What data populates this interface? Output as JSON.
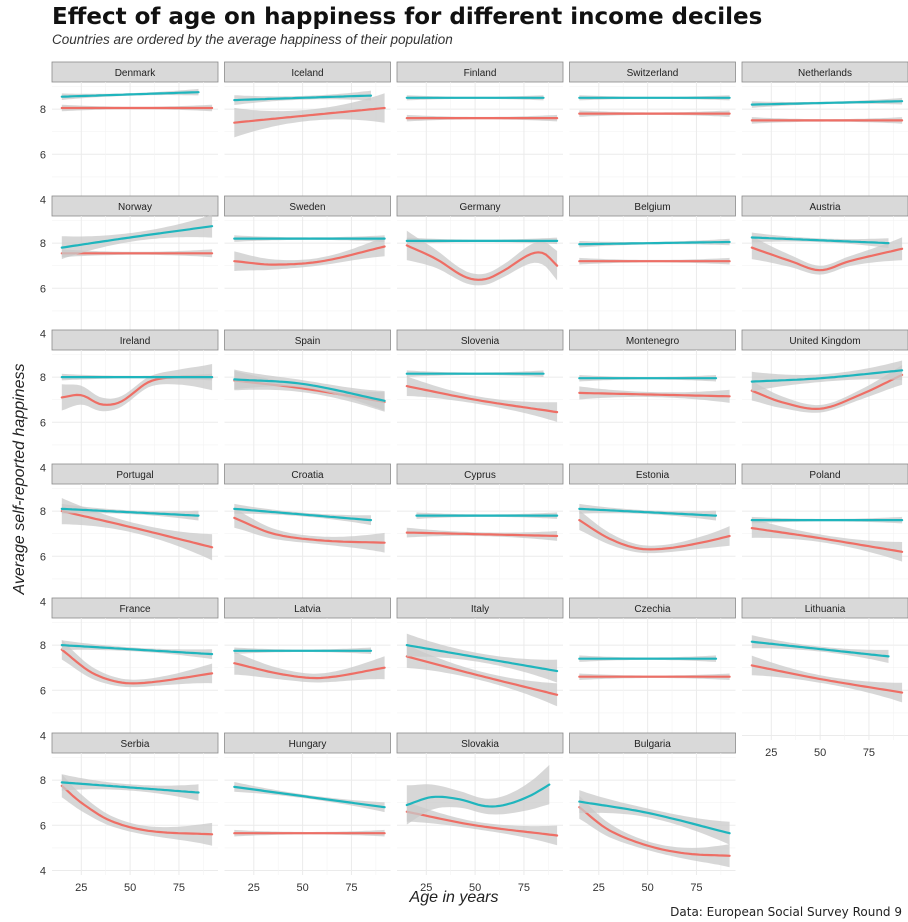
{
  "title": "Effect of age on happiness for different income deciles",
  "subtitle": "Countries are ordered by the average happiness of their population",
  "caption": "Data: European Social Survey Round 9",
  "colors": {
    "high_income": "#1fb5bd",
    "low_income": "#ee6e65",
    "band": "#c9c9c9",
    "strip": "#d9d9d9",
    "grid": "#ebebeb"
  },
  "chart_data": {
    "type": "line",
    "title": "Effect of age on happiness for different income deciles",
    "xlabel": "Age in years",
    "ylabel": "Average self-reported happiness",
    "xlim": [
      10,
      95
    ],
    "ylim": [
      3.8,
      9.2
    ],
    "x_ticks": [
      25,
      50,
      75
    ],
    "y_ticks": [
      4,
      6,
      8
    ],
    "grid": true,
    "facets": [
      {
        "name": "Denmark",
        "teal": [
          [
            15,
            8.55
          ],
          [
            85,
            8.75
          ]
        ],
        "red": [
          [
            15,
            8.05
          ],
          [
            92,
            8.05
          ]
        ],
        "red_band": 0.1,
        "teal_band": 0.1
      },
      {
        "name": "Iceland",
        "teal": [
          [
            15,
            8.4
          ],
          [
            85,
            8.6
          ]
        ],
        "red": [
          [
            15,
            7.4
          ],
          [
            50,
            7.7
          ],
          [
            92,
            8.05
          ]
        ],
        "red_band": 0.45,
        "teal_band": 0.15
      },
      {
        "name": "Finland",
        "teal": [
          [
            15,
            8.5
          ],
          [
            85,
            8.5
          ]
        ],
        "red": [
          [
            15,
            7.6
          ],
          [
            92,
            7.6
          ]
        ],
        "red_band": 0.1,
        "teal_band": 0.08
      },
      {
        "name": "Switzerland",
        "teal": [
          [
            15,
            8.5
          ],
          [
            92,
            8.5
          ]
        ],
        "red": [
          [
            15,
            7.8
          ],
          [
            92,
            7.8
          ]
        ],
        "red_band": 0.1,
        "teal_band": 0.08
      },
      {
        "name": "Netherlands",
        "teal": [
          [
            15,
            8.2
          ],
          [
            92,
            8.35
          ]
        ],
        "red": [
          [
            15,
            7.5
          ],
          [
            92,
            7.5
          ]
        ],
        "red_band": 0.1,
        "teal_band": 0.1
      },
      {
        "name": "Norway",
        "teal": [
          [
            15,
            7.8
          ],
          [
            50,
            8.25
          ],
          [
            92,
            8.75
          ]
        ],
        "red": [
          [
            15,
            7.55
          ],
          [
            92,
            7.55
          ]
        ],
        "red_band": 0.12,
        "teal_band": 0.35
      },
      {
        "name": "Sweden",
        "teal": [
          [
            15,
            8.2
          ],
          [
            92,
            8.2
          ]
        ],
        "red": [
          [
            15,
            7.2
          ],
          [
            35,
            7.05
          ],
          [
            60,
            7.2
          ],
          [
            92,
            7.85
          ]
        ],
        "red_band": 0.3,
        "teal_band": 0.1
      },
      {
        "name": "Germany",
        "teal": [
          [
            15,
            8.1
          ],
          [
            92,
            8.1
          ]
        ],
        "red": [
          [
            15,
            7.9
          ],
          [
            30,
            7.3
          ],
          [
            45,
            6.5
          ],
          [
            55,
            6.4
          ],
          [
            65,
            6.8
          ],
          [
            78,
            7.5
          ],
          [
            85,
            7.55
          ],
          [
            92,
            7.0
          ]
        ],
        "red_band": 0.45,
        "teal_band": 0.1
      },
      {
        "name": "Belgium",
        "teal": [
          [
            15,
            7.95
          ],
          [
            92,
            8.05
          ]
        ],
        "red": [
          [
            15,
            7.2
          ],
          [
            92,
            7.2
          ]
        ],
        "red_band": 0.1,
        "teal_band": 0.1
      },
      {
        "name": "Austria",
        "teal": [
          [
            15,
            8.25
          ],
          [
            85,
            8.0
          ]
        ],
        "red": [
          [
            15,
            7.8
          ],
          [
            35,
            7.2
          ],
          [
            50,
            6.8
          ],
          [
            65,
            7.2
          ],
          [
            92,
            7.75
          ]
        ],
        "red_band": 0.35,
        "teal_band": 0.15
      },
      {
        "name": "Ireland",
        "teal": [
          [
            15,
            8.0
          ],
          [
            92,
            8.0
          ]
        ],
        "red": [
          [
            15,
            7.1
          ],
          [
            25,
            7.2
          ],
          [
            35,
            6.8
          ],
          [
            45,
            6.9
          ],
          [
            60,
            7.8
          ],
          [
            75,
            8.0
          ],
          [
            92,
            8.0
          ]
        ],
        "red_band": 0.4,
        "teal_band": 0.1
      },
      {
        "name": "Spain",
        "teal": [
          [
            15,
            7.9
          ],
          [
            50,
            7.7
          ],
          [
            92,
            6.95
          ]
        ],
        "red": [
          [
            15,
            7.85
          ],
          [
            50,
            7.5
          ],
          [
            92,
            6.9
          ]
        ],
        "red_band": 0.3,
        "teal_band": 0.3
      },
      {
        "name": "Slovenia",
        "teal": [
          [
            15,
            8.15
          ],
          [
            85,
            8.15
          ]
        ],
        "red": [
          [
            15,
            7.6
          ],
          [
            50,
            7.0
          ],
          [
            92,
            6.45
          ]
        ],
        "red_band": 0.3,
        "teal_band": 0.1
      },
      {
        "name": "Montenegro",
        "teal": [
          [
            15,
            7.95
          ],
          [
            85,
            7.95
          ]
        ],
        "red": [
          [
            15,
            7.3
          ],
          [
            92,
            7.15
          ]
        ],
        "red_band": 0.2,
        "teal_band": 0.1
      },
      {
        "name": "United Kingdom",
        "teal": [
          [
            15,
            7.8
          ],
          [
            50,
            7.95
          ],
          [
            92,
            8.3
          ]
        ],
        "red": [
          [
            15,
            7.4
          ],
          [
            30,
            6.9
          ],
          [
            50,
            6.6
          ],
          [
            70,
            7.2
          ],
          [
            92,
            8.1
          ]
        ],
        "red_band": 0.3,
        "teal_band": 0.3
      },
      {
        "name": "Portugal",
        "teal": [
          [
            15,
            8.1
          ],
          [
            85,
            7.8
          ]
        ],
        "red": [
          [
            15,
            8.0
          ],
          [
            50,
            7.3
          ],
          [
            92,
            6.4
          ]
        ],
        "red_band": 0.4,
        "teal_band": 0.15
      },
      {
        "name": "Croatia",
        "teal": [
          [
            15,
            8.1
          ],
          [
            85,
            7.6
          ]
        ],
        "red": [
          [
            15,
            7.7
          ],
          [
            35,
            7.0
          ],
          [
            60,
            6.7
          ],
          [
            92,
            6.6
          ]
        ],
        "red_band": 0.3,
        "teal_band": 0.15
      },
      {
        "name": "Cyprus",
        "teal": [
          [
            20,
            7.8
          ],
          [
            92,
            7.8
          ]
        ],
        "red": [
          [
            15,
            7.05
          ],
          [
            92,
            6.9
          ]
        ],
        "red_band": 0.15,
        "teal_band": 0.1
      },
      {
        "name": "Estonia",
        "teal": [
          [
            15,
            8.1
          ],
          [
            85,
            7.8
          ]
        ],
        "red": [
          [
            15,
            7.6
          ],
          [
            30,
            6.8
          ],
          [
            45,
            6.35
          ],
          [
            60,
            6.35
          ],
          [
            80,
            6.65
          ],
          [
            92,
            6.9
          ]
        ],
        "red_band": 0.3,
        "teal_band": 0.15
      },
      {
        "name": "Poland",
        "teal": [
          [
            15,
            7.6
          ],
          [
            92,
            7.6
          ]
        ],
        "red": [
          [
            15,
            7.25
          ],
          [
            50,
            6.8
          ],
          [
            92,
            6.2
          ]
        ],
        "red_band": 0.3,
        "teal_band": 0.1
      },
      {
        "name": "France",
        "teal": [
          [
            15,
            8.0
          ],
          [
            92,
            7.6
          ]
        ],
        "red": [
          [
            15,
            7.8
          ],
          [
            30,
            6.8
          ],
          [
            45,
            6.35
          ],
          [
            60,
            6.35
          ],
          [
            92,
            6.75
          ]
        ],
        "red_band": 0.3,
        "teal_band": 0.15
      },
      {
        "name": "Latvia",
        "teal": [
          [
            15,
            7.75
          ],
          [
            85,
            7.75
          ]
        ],
        "red": [
          [
            15,
            7.2
          ],
          [
            40,
            6.7
          ],
          [
            60,
            6.55
          ],
          [
            92,
            7.0
          ]
        ],
        "red_band": 0.35,
        "teal_band": 0.1
      },
      {
        "name": "Italy",
        "teal": [
          [
            15,
            8.0
          ],
          [
            92,
            6.85
          ]
        ],
        "red": [
          [
            15,
            7.5
          ],
          [
            50,
            6.7
          ],
          [
            92,
            5.8
          ]
        ],
        "red_band": 0.35,
        "teal_band": 0.35
      },
      {
        "name": "Czechia",
        "teal": [
          [
            15,
            7.4
          ],
          [
            85,
            7.4
          ]
        ],
        "red": [
          [
            15,
            6.6
          ],
          [
            92,
            6.6
          ]
        ],
        "red_band": 0.1,
        "teal_band": 0.1
      },
      {
        "name": "Lithuania",
        "teal": [
          [
            15,
            8.15
          ],
          [
            85,
            7.5
          ]
        ],
        "red": [
          [
            15,
            7.1
          ],
          [
            50,
            6.5
          ],
          [
            92,
            5.9
          ]
        ],
        "red_band": 0.3,
        "teal_band": 0.2
      },
      {
        "name": "Serbia",
        "teal": [
          [
            15,
            7.9
          ],
          [
            85,
            7.45
          ]
        ],
        "red": [
          [
            15,
            7.75
          ],
          [
            25,
            7.0
          ],
          [
            40,
            6.2
          ],
          [
            60,
            5.75
          ],
          [
            92,
            5.6
          ]
        ],
        "red_band": 0.35,
        "teal_band": 0.25
      },
      {
        "name": "Hungary",
        "teal": [
          [
            15,
            7.7
          ],
          [
            92,
            6.8
          ]
        ],
        "red": [
          [
            15,
            5.65
          ],
          [
            92,
            5.65
          ]
        ],
        "red_band": 0.1,
        "teal_band": 0.15
      },
      {
        "name": "Slovakia",
        "teal": [
          [
            15,
            6.9
          ],
          [
            28,
            7.25
          ],
          [
            42,
            7.15
          ],
          [
            55,
            6.85
          ],
          [
            65,
            6.9
          ],
          [
            78,
            7.3
          ],
          [
            88,
            7.8
          ]
        ],
        "red": [
          [
            15,
            6.6
          ],
          [
            50,
            6.0
          ],
          [
            92,
            5.55
          ]
        ],
        "red_band": 0.3,
        "teal_band": 0.6
      },
      {
        "name": "Bulgaria",
        "teal": [
          [
            15,
            7.05
          ],
          [
            50,
            6.55
          ],
          [
            92,
            5.65
          ]
        ],
        "red": [
          [
            15,
            6.8
          ],
          [
            30,
            5.8
          ],
          [
            50,
            5.1
          ],
          [
            70,
            4.75
          ],
          [
            92,
            4.65
          ]
        ],
        "red_band": 0.35,
        "teal_band": 0.35
      }
    ]
  }
}
